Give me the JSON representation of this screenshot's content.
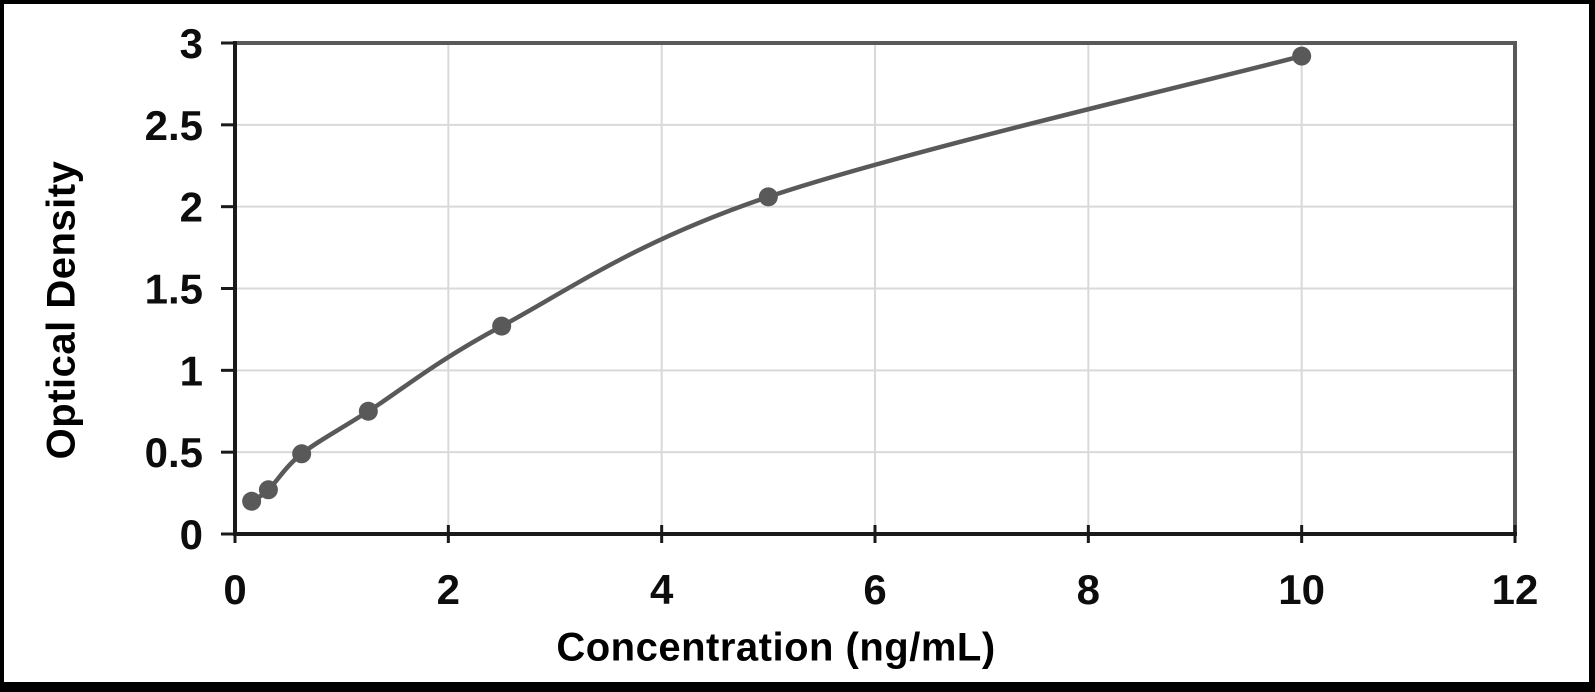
{
  "chart_data": {
    "type": "scatter",
    "title": "",
    "xlabel": "Concentration (ng/mL)",
    "ylabel": "Optical Density",
    "x": [
      0.156,
      0.313,
      0.625,
      1.25,
      2.5,
      5,
      10
    ],
    "y": [
      0.2,
      0.27,
      0.49,
      0.75,
      1.27,
      2.06,
      2.92
    ],
    "xlim": [
      0,
      12
    ],
    "ylim": [
      0,
      3
    ],
    "xticks": {
      "values": [
        0,
        2,
        4,
        6,
        8,
        10,
        12
      ],
      "labels": [
        "0",
        "2",
        "4",
        "6",
        "8",
        "10",
        "12"
      ]
    },
    "yticks": {
      "values": [
        0,
        0.5,
        1,
        1.5,
        2,
        2.5,
        3
      ],
      "labels": [
        "0",
        "0.5",
        "1",
        "1.5",
        "2",
        "2.5",
        "3"
      ]
    },
    "grid": true,
    "legend": "none",
    "curve_style": "smooth",
    "marker": "circle",
    "colors": {
      "series": "#595959",
      "gridline": "#d9d9d9",
      "axis": "#1a1a1a",
      "plot_frame": "#595959",
      "text": "#000000",
      "background": "#ffffff",
      "page_border": "#000000"
    }
  }
}
